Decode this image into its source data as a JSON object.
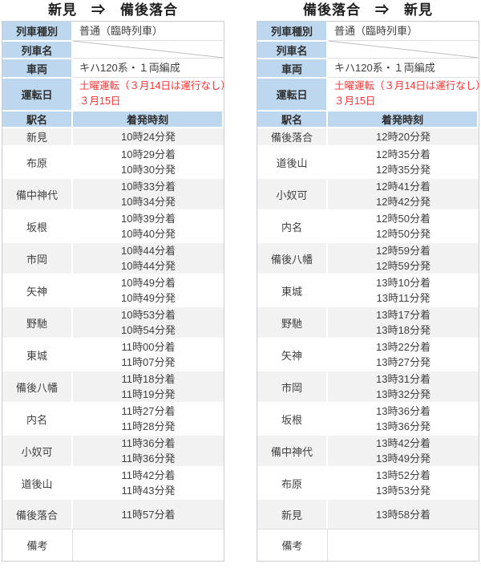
{
  "colors": {
    "header_fill": "#bdd7ee",
    "stripe_fill": "#f2f2f2",
    "red_text": "#ff3030",
    "outer_border": "#c9ced4"
  },
  "tables": [
    {
      "title": "新見　⇒　備後落合",
      "info_rows": [
        {
          "label": "列車種別",
          "value": "普通（臨時列車）"
        },
        {
          "label": "列車名",
          "value": "",
          "empty": true
        },
        {
          "label": "車両",
          "value": "キハ120系・１両編成"
        },
        {
          "label": "運転日",
          "value_lines": [
            "土曜運転（３月14日は運行なし）",
            "３月15日"
          ]
        }
      ],
      "columns": {
        "station": "駅名",
        "time": "着発時刻"
      },
      "rows": [
        {
          "station": "新見",
          "times": [
            "10時24分発"
          ]
        },
        {
          "station": "布原",
          "times": [
            "10時29分着",
            "10時30分発"
          ]
        },
        {
          "station": "備中神代",
          "times": [
            "10時33分着",
            "10時34分発"
          ]
        },
        {
          "station": "坂根",
          "times": [
            "10時39分着",
            "10時40分発"
          ]
        },
        {
          "station": "市岡",
          "times": [
            "10時44分着",
            "10時44分発"
          ]
        },
        {
          "station": "矢神",
          "times": [
            "10時49分着",
            "10時49分発"
          ]
        },
        {
          "station": "野馳",
          "times": [
            "10時53分着",
            "10時54分発"
          ]
        },
        {
          "station": "東城",
          "times": [
            "11時00分着",
            "11時07分発"
          ]
        },
        {
          "station": "備後八幡",
          "times": [
            "11時18分着",
            "11時19分発"
          ]
        },
        {
          "station": "内名",
          "times": [
            "11時27分着",
            "11時28分発"
          ]
        },
        {
          "station": "小奴可",
          "times": [
            "11時36分着",
            "11時36分発"
          ]
        },
        {
          "station": "道後山",
          "times": [
            "11時42分着",
            "11時43分発"
          ]
        },
        {
          "station": "備後落合",
          "times": [
            "11時57分着"
          ]
        }
      ],
      "remarks_label": "備考",
      "remarks_value": ""
    },
    {
      "title": "備後落合　⇒　新見",
      "info_rows": [
        {
          "label": "列車種別",
          "value": "普通（臨時列車）"
        },
        {
          "label": "列車名",
          "value": "",
          "empty": true
        },
        {
          "label": "車両",
          "value": "キハ120系・１両編成"
        },
        {
          "label": "運転日",
          "value_lines": [
            "土曜運転（３月14日は運行なし）",
            "３月15日"
          ]
        }
      ],
      "columns": {
        "station": "駅名",
        "time": "着発時刻"
      },
      "rows": [
        {
          "station": "備後落合",
          "times": [
            "12時20分発"
          ]
        },
        {
          "station": "道後山",
          "times": [
            "12時35分着",
            "12時35分発"
          ]
        },
        {
          "station": "小奴可",
          "times": [
            "12時41分着",
            "12時42分発"
          ]
        },
        {
          "station": "内名",
          "times": [
            "12時50分着",
            "12時50分発"
          ]
        },
        {
          "station": "備後八幡",
          "times": [
            "12時59分着",
            "12時59分発"
          ]
        },
        {
          "station": "東城",
          "times": [
            "13時10分着",
            "13時11分発"
          ]
        },
        {
          "station": "野馳",
          "times": [
            "13時17分着",
            "13時18分発"
          ]
        },
        {
          "station": "矢神",
          "times": [
            "13時22分着",
            "13時27分発"
          ]
        },
        {
          "station": "市岡",
          "times": [
            "13時31分着",
            "13時32分発"
          ]
        },
        {
          "station": "坂根",
          "times": [
            "13時36分着",
            "13時36分発"
          ]
        },
        {
          "station": "備中神代",
          "times": [
            "13時42分着",
            "13時49分発"
          ]
        },
        {
          "station": "布原",
          "times": [
            "13時52分着",
            "13時53分発"
          ]
        },
        {
          "station": "新見",
          "times": [
            "13時58分着"
          ]
        }
      ],
      "remarks_label": "備考",
      "remarks_value": ""
    }
  ]
}
